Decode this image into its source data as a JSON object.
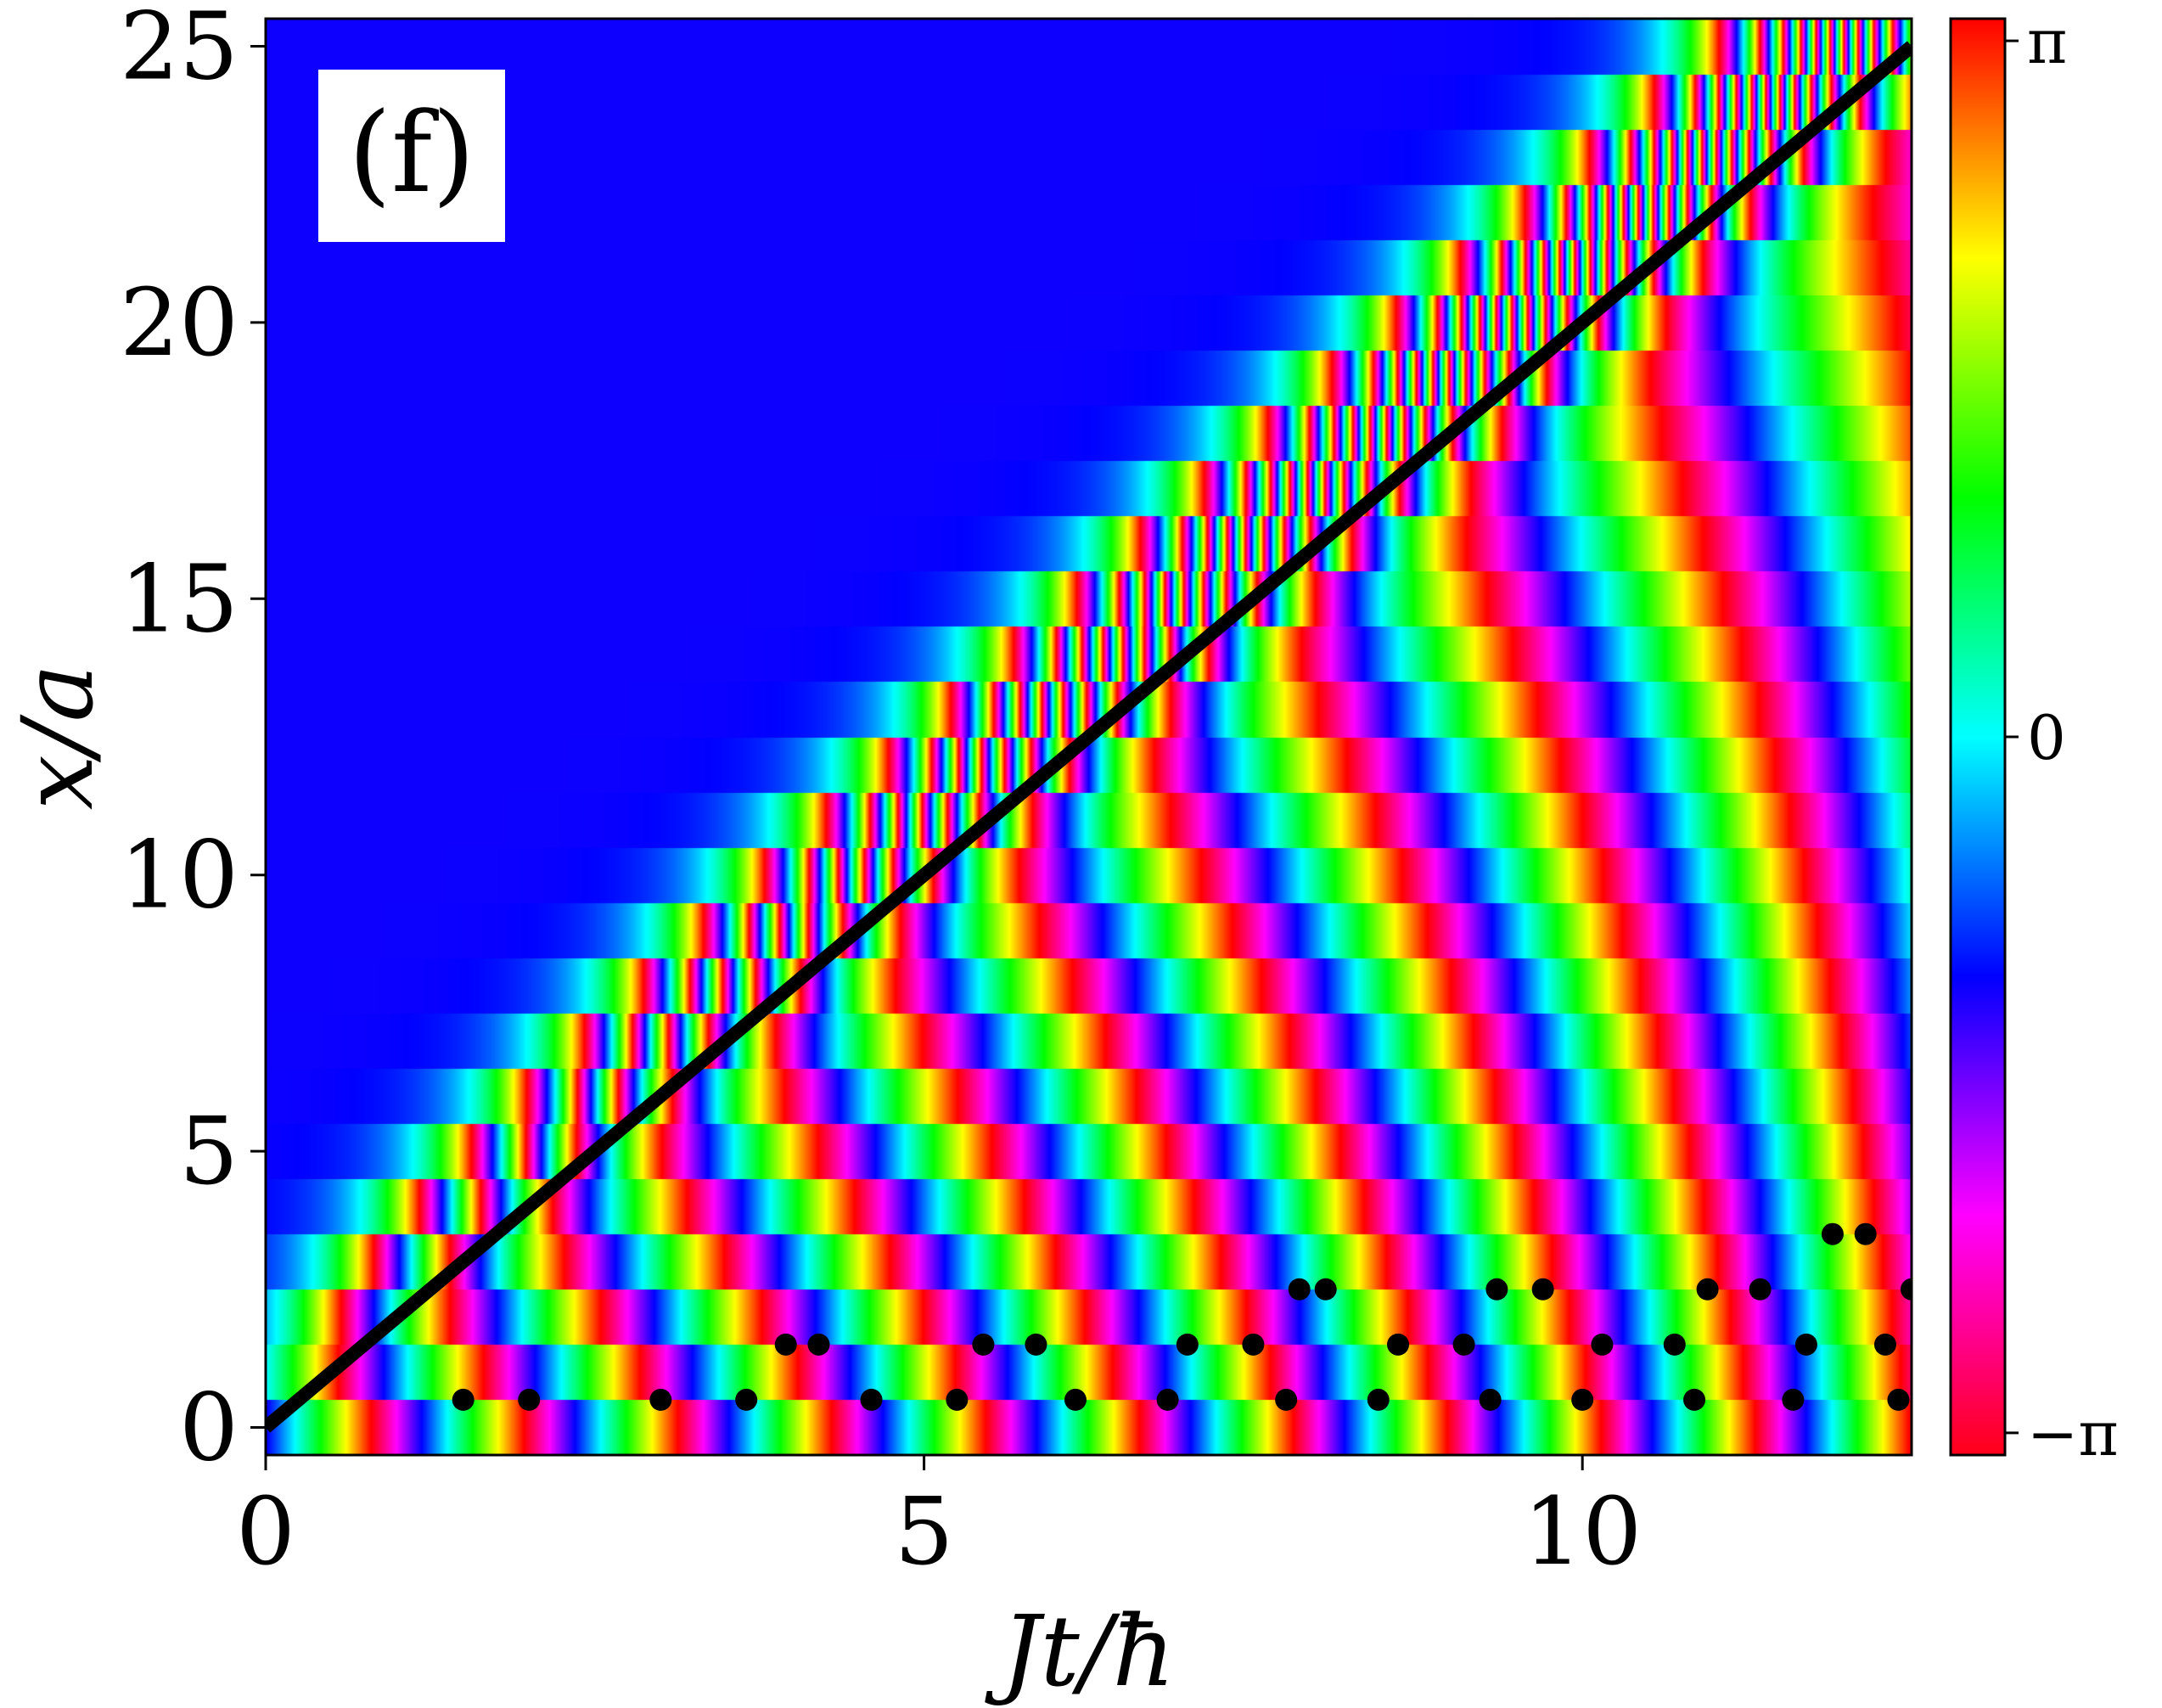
{
  "chart_data": {
    "type": "heatmap",
    "panel_label": "(f)",
    "xlabel": "Jt/ħ",
    "ylabel": "x/a",
    "xlim": [
      0,
      12.5
    ],
    "ylim": [
      -0.5,
      25.5
    ],
    "xticks": [
      0,
      5,
      10
    ],
    "xtick_labels": [
      "0",
      "5",
      "10"
    ],
    "yticks": [
      0,
      5,
      10,
      15,
      20,
      25
    ],
    "ytick_labels": [
      "0",
      "5",
      "10",
      "15",
      "20",
      "25"
    ],
    "grid": false,
    "colorbar": {
      "colormap": "hsv",
      "range": [
        -3.14159,
        3.14159
      ],
      "ticks": [
        3.14159,
        0,
        -3.14159
      ],
      "tick_labels": [
        "π",
        "0",
        "−π"
      ]
    },
    "front_line": {
      "x": [
        0,
        12.5
      ],
      "y": [
        0,
        25
      ],
      "color": "#000000"
    },
    "vortex_points": [
      {
        "t": 1.5,
        "x": 0
      },
      {
        "t": 2.0,
        "x": 0
      },
      {
        "t": 3.0,
        "x": 0
      },
      {
        "t": 3.65,
        "x": 0
      },
      {
        "t": 4.6,
        "x": 0
      },
      {
        "t": 5.25,
        "x": 0
      },
      {
        "t": 6.15,
        "x": 0
      },
      {
        "t": 6.85,
        "x": 0
      },
      {
        "t": 7.75,
        "x": 0
      },
      {
        "t": 8.45,
        "x": 0
      },
      {
        "t": 9.3,
        "x": 0
      },
      {
        "t": 10.0,
        "x": 0
      },
      {
        "t": 10.85,
        "x": 0
      },
      {
        "t": 11.6,
        "x": 0
      },
      {
        "t": 12.4,
        "x": 0
      },
      {
        "t": 3.95,
        "x": 1
      },
      {
        "t": 4.2,
        "x": 1
      },
      {
        "t": 5.45,
        "x": 1
      },
      {
        "t": 5.85,
        "x": 1
      },
      {
        "t": 7.0,
        "x": 1
      },
      {
        "t": 7.5,
        "x": 1
      },
      {
        "t": 8.6,
        "x": 1
      },
      {
        "t": 9.1,
        "x": 1
      },
      {
        "t": 10.15,
        "x": 1
      },
      {
        "t": 10.7,
        "x": 1
      },
      {
        "t": 11.7,
        "x": 1
      },
      {
        "t": 12.3,
        "x": 1
      },
      {
        "t": 7.85,
        "x": 2
      },
      {
        "t": 8.05,
        "x": 2
      },
      {
        "t": 9.35,
        "x": 2
      },
      {
        "t": 9.7,
        "x": 2
      },
      {
        "t": 10.95,
        "x": 2
      },
      {
        "t": 11.35,
        "x": 2
      },
      {
        "t": 12.5,
        "x": 2
      },
      {
        "t": 11.9,
        "x": 3
      },
      {
        "t": 12.15,
        "x": 3
      }
    ],
    "phase_model": {
      "n_sites": 26,
      "upper_region_value": 1.1,
      "lower_region": "phase winds with time at a rate that decreases with x/a, giving diagonal stripes; adjacent rows offset"
    }
  }
}
